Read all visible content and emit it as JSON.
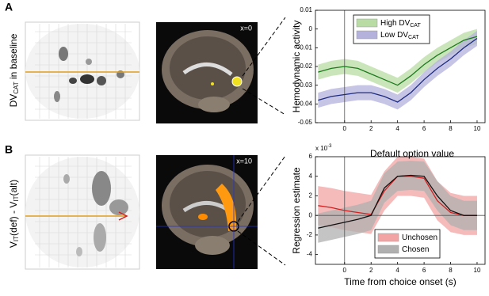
{
  "panels": [
    {
      "label": "A",
      "ylabel": [
        {
          "text": "DV"
        },
        {
          "sub": "CAT"
        },
        {
          "text": " in baseline"
        }
      ],
      "slice_label": "x=0"
    },
    {
      "label": "B",
      "ylabel": [
        {
          "text": "V"
        },
        {
          "sub": "IT"
        },
        {
          "text": "(def) - V"
        },
        {
          "sub": "IT"
        },
        {
          "text": "(alt)"
        }
      ],
      "slice_label": "x=10"
    }
  ],
  "chart_data": [
    {
      "type": "line",
      "ylabel": "Hemodynamic activity",
      "x": [
        -2,
        -1,
        0,
        1,
        2,
        3,
        4,
        5,
        6,
        7,
        8,
        9,
        10
      ],
      "xlim": [
        -2.2,
        10.6
      ],
      "xticks": [
        0,
        2,
        4,
        6,
        8,
        10
      ],
      "ylim": [
        -0.05,
        0.01
      ],
      "yticks": [
        -0.05,
        -0.04,
        -0.03,
        -0.02,
        -0.01,
        0,
        0.01
      ],
      "legend": "top-left",
      "series": [
        {
          "name": "High DV",
          "name_subscript": "CAT",
          "color": "#1b7a1b",
          "band_color": "#b9dca4",
          "values": [
            -0.023,
            -0.021,
            -0.02,
            -0.021,
            -0.024,
            -0.027,
            -0.03,
            -0.025,
            -0.019,
            -0.014,
            -0.01,
            -0.006,
            -0.004
          ],
          "errors": [
            0.004,
            0.004,
            0.004,
            0.004,
            0.004,
            0.004,
            0.004,
            0.004,
            0.004,
            0.004,
            0.004,
            0.004,
            0.004
          ]
        },
        {
          "name": "Low DV",
          "name_subscript": "CAT",
          "color": "#1c2a80",
          "band_color": "#b4b2dc",
          "values": [
            -0.038,
            -0.036,
            -0.035,
            -0.034,
            -0.034,
            -0.036,
            -0.039,
            -0.034,
            -0.027,
            -0.021,
            -0.016,
            -0.01,
            -0.005
          ],
          "errors": [
            0.004,
            0.004,
            0.004,
            0.004,
            0.004,
            0.004,
            0.004,
            0.004,
            0.004,
            0.004,
            0.004,
            0.004,
            0.004
          ]
        }
      ]
    },
    {
      "type": "line",
      "title": "Default option value",
      "ylabel": "Regression estimate",
      "xlabel": "Time from choice onset (s)",
      "y_multiplier": {
        "text": "x 10",
        "exponent": "-3"
      },
      "x": [
        -2,
        -1,
        0,
        1,
        2,
        3,
        4,
        5,
        6,
        7,
        8,
        9,
        10
      ],
      "xlim": [
        -2.2,
        10.6
      ],
      "xticks": [
        0,
        2,
        4,
        6,
        8,
        10
      ],
      "ylim": [
        -5,
        6
      ],
      "yticks": [
        -4,
        -2,
        0,
        2,
        4,
        6
      ],
      "legend": "bottom-center",
      "series": [
        {
          "name": "Unchosen",
          "color": "#d42020",
          "band_color": "#f2a4a4",
          "values": [
            1,
            0.8,
            0.5,
            0.3,
            0.1,
            2.5,
            4,
            4,
            3.8,
            1.5,
            0.3,
            0,
            0
          ],
          "errors": [
            2,
            2,
            2,
            2,
            2,
            2,
            2,
            2,
            2,
            2,
            2,
            2,
            2
          ]
        },
        {
          "name": "Chosen",
          "color": "#111111",
          "band_color": "#b0b0b0",
          "values": [
            -1.3,
            -1,
            -0.7,
            -0.4,
            0,
            2.8,
            4,
            4.1,
            4,
            2,
            0.5,
            0,
            0
          ],
          "errors": [
            1.5,
            1.5,
            1.5,
            1.5,
            1.5,
            1.5,
            1.5,
            1.5,
            1.5,
            1.5,
            1.5,
            1.5,
            1.5
          ]
        }
      ]
    }
  ]
}
